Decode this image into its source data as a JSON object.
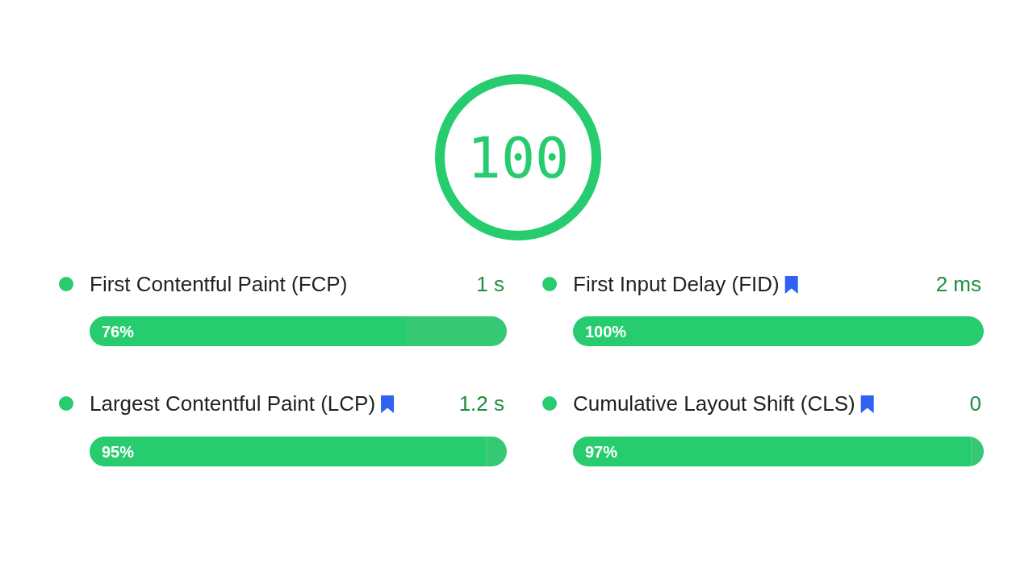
{
  "chart_data": [
    {
      "type": "donut",
      "categories": [
        null
      ],
      "values": [
        100
      ],
      "colors": [
        "#26cc6e"
      ],
      "data_labels": true
    },
    {
      "type": "bar",
      "orientation": "horizontal",
      "stacked": true,
      "categories": [
        "First Contentful Paint (FCP)",
        "Largest Contentful Paint (LCP)"
      ],
      "annotations": [
        "1 s",
        "1.2 s"
      ],
      "xlim": [
        0,
        100
      ],
      "tick_labels": "y",
      "series": [
        {
          "color": "#26cc6e",
          "values": [
            76,
            95
          ],
          "value_labels": [
            "76%",
            "95%"
          ]
        },
        {
          "color": "#36c872",
          "values": [
            24,
            5
          ]
        }
      ]
    },
    {
      "type": "bar",
      "orientation": "horizontal",
      "stacked": true,
      "categories": [
        "First Input Delay (FID)",
        "Cumulative Layout Shift (CLS)"
      ],
      "annotations": [
        "2 ms",
        "0"
      ],
      "xlim": [
        0,
        100
      ],
      "tick_labels": "y",
      "series": [
        {
          "color": "#26cc6e",
          "values": [
            100,
            97
          ],
          "value_labels": [
            "100%",
            "97%"
          ]
        },
        {
          "color": "#36c872",
          "values": [
            0,
            3
          ]
        }
      ]
    }
  ]
}
